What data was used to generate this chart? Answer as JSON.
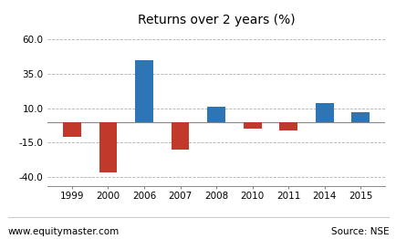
{
  "categories": [
    "1999",
    "2000",
    "2006",
    "2007",
    "2008",
    "2010",
    "2011",
    "2014",
    "2015"
  ],
  "values": [
    -11,
    -37,
    45,
    -20,
    11,
    -5,
    -6,
    14,
    7
  ],
  "colors": [
    "#c0392b",
    "#c0392b",
    "#2e75b6",
    "#c0392b",
    "#2e75b6",
    "#c0392b",
    "#c0392b",
    "#2e75b6",
    "#2e75b6"
  ],
  "title": "Returns over 2 years (%)",
  "yticks": [
    -40.0,
    -15.0,
    10.0,
    35.0,
    60.0
  ],
  "ylim": [
    -47,
    68
  ],
  "footer_left": "www.equitymaster.com",
  "footer_right": "Source: NSE",
  "background_color": "#ffffff",
  "grid_color": "#b0b0b0",
  "title_fontsize": 10,
  "tick_fontsize": 7.5,
  "footer_fontsize": 7.5
}
